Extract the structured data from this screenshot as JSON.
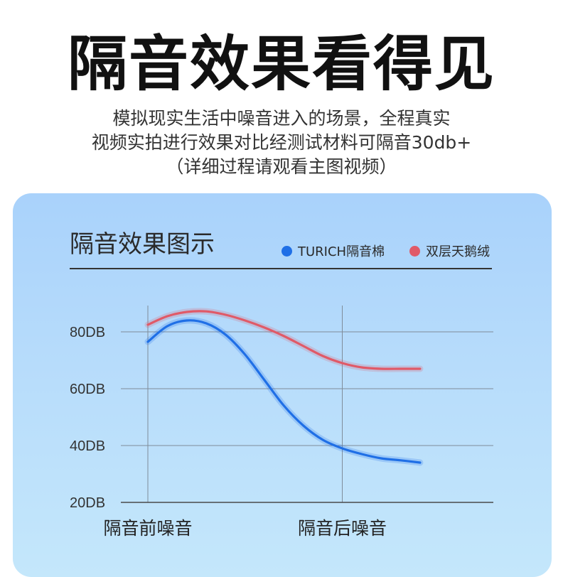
{
  "headline": "隔音效果看得见",
  "description": {
    "line1": "模拟现实生活中噪音进入的场景，全程真实",
    "line2": "视频实拍进行效果对比经测试材料可隔音30db+",
    "line3": "（详细过程请观看主图视频）"
  },
  "chart_data": {
    "type": "line",
    "title": "隔音效果图示",
    "categories": [
      "隔音前噪音",
      "隔音后噪音"
    ],
    "y_ticks": [
      "80DB",
      "60DB",
      "40DB",
      "20DB"
    ],
    "ylim": [
      20,
      90
    ],
    "grid": true,
    "legend_position": "top-right",
    "series": [
      {
        "name": "TURICH隔音棉",
        "color": "#1f6fe6",
        "x": [
          0,
          0.1,
          0.2,
          0.3,
          0.4,
          0.5,
          0.6,
          0.7,
          0.8,
          0.9,
          1.0,
          1.1,
          1.2,
          1.3,
          1.4
        ],
        "y": [
          76.5,
          82,
          84,
          83,
          79,
          72,
          63,
          54,
          47,
          42,
          39,
          37,
          35.5,
          34.8,
          34
        ]
      },
      {
        "name": "双层天鹅绒",
        "color": "#e05a68",
        "x": [
          0,
          0.1,
          0.2,
          0.3,
          0.4,
          0.5,
          0.6,
          0.7,
          0.8,
          0.9,
          1.0,
          1.1,
          1.2,
          1.3,
          1.4
        ],
        "y": [
          82.5,
          85.5,
          87,
          87.2,
          86,
          84,
          81.5,
          78.5,
          75,
          71.5,
          69,
          67.5,
          67,
          67,
          67
        ]
      }
    ]
  }
}
